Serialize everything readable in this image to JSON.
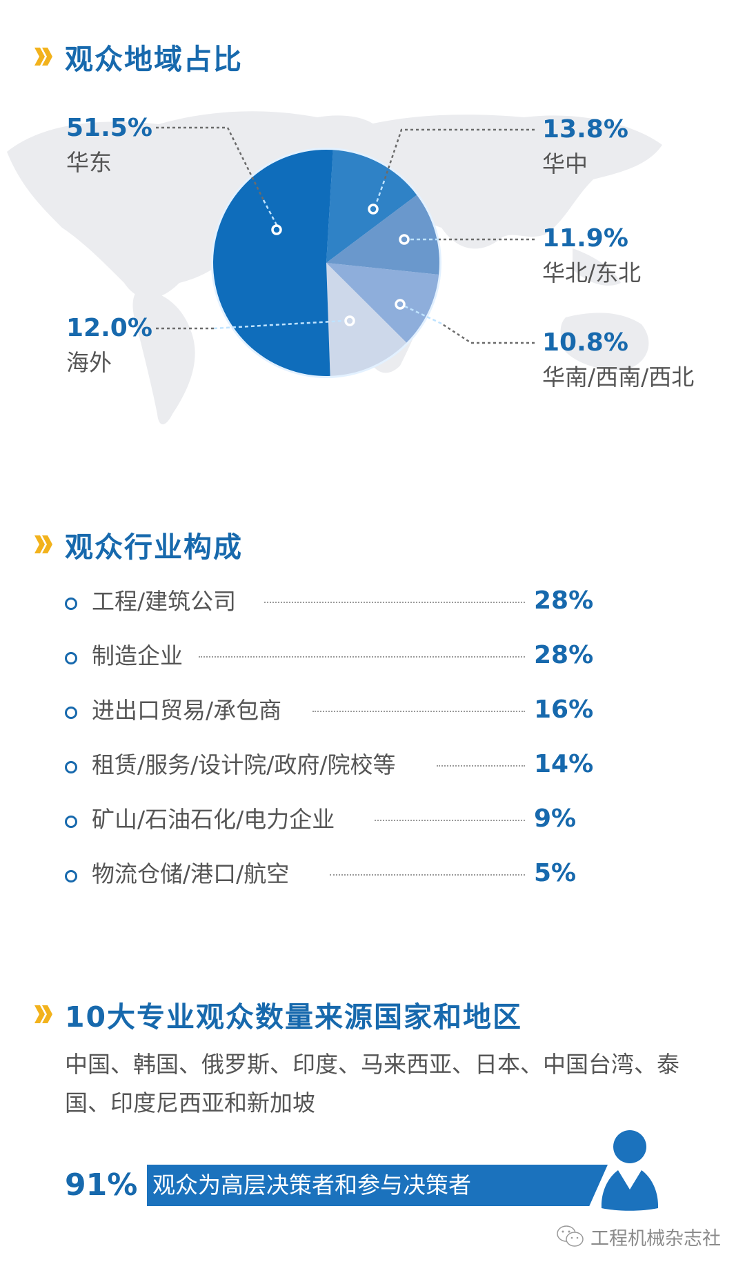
{
  "sections": {
    "region": {
      "title": "观众地域占比",
      "items": [
        {
          "pct": "51.5%",
          "name": "华东"
        },
        {
          "pct": "13.8%",
          "name": "华中"
        },
        {
          "pct": "11.9%",
          "name": "华北/东北"
        },
        {
          "pct": "10.8%",
          "name": "华南/西南/西北"
        },
        {
          "pct": "12.0%",
          "name": "海外"
        }
      ]
    },
    "industry": {
      "title": "观众行业构成",
      "items": [
        {
          "label": "工程/建筑公司",
          "value": "28%"
        },
        {
          "label": "制造企业",
          "value": "28%"
        },
        {
          "label": "进出口贸易/承包商",
          "value": "16%"
        },
        {
          "label": "租赁/服务/设计院/政府/院校等",
          "value": "14%"
        },
        {
          "label": "矿山/石油石化/电力企业",
          "value": "9%"
        },
        {
          "label": "物流仓储/港口/航空",
          "value": "5%"
        }
      ]
    },
    "countries": {
      "title": "10大专业观众数量来源国家和地区",
      "text": "中国、韩国、俄罗斯、印度、马来西亚、日本、中国台湾、泰国、印度尼西亚和新加坡"
    },
    "decision": {
      "pct": "91%",
      "text": "观众为高层决策者和参与决策者",
      "icon": "person-icon"
    }
  },
  "watermark": {
    "icon": "wechat-icon",
    "text": "工程机械杂志社"
  },
  "colors": {
    "accent": "#1769ad",
    "chevron": "#f2b21c",
    "bar": "#1b72bd",
    "slice_colors": [
      "#0f6dbb",
      "#2f82c6",
      "#6a98cc",
      "#8eaedb",
      "#cdd8ea"
    ]
  },
  "chart_data": [
    {
      "type": "pie",
      "title": "观众地域占比",
      "categories": [
        "华东",
        "华中",
        "华北/东北",
        "华南/西南/西北",
        "海外"
      ],
      "values": [
        51.5,
        13.8,
        11.9,
        10.8,
        12.0
      ],
      "unit": "%"
    },
    {
      "type": "bar",
      "title": "观众行业构成",
      "categories": [
        "工程/建筑公司",
        "制造企业",
        "进出口贸易/承包商",
        "租赁/服务/设计院/政府/院校等",
        "矿山/石油石化/电力企业",
        "物流仓储/港口/航空"
      ],
      "values": [
        28,
        28,
        16,
        14,
        9,
        5
      ],
      "unit": "%"
    }
  ]
}
